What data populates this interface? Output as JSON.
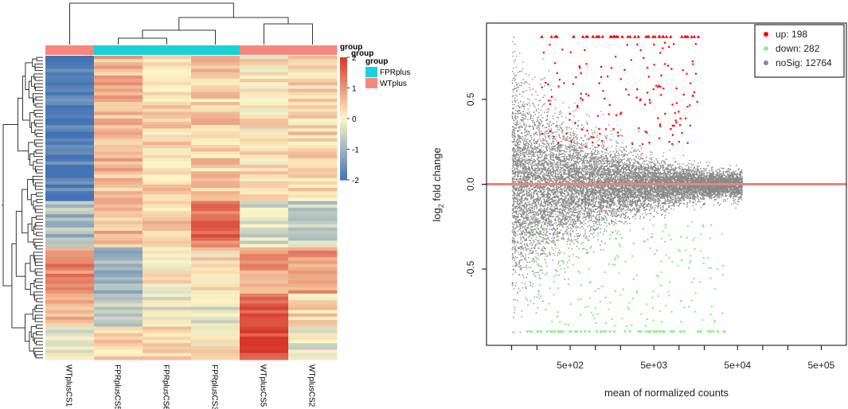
{
  "colors": {
    "fprplus": "#19d2d7",
    "wtplus": "#f7877d",
    "heat_low": "#4273b5",
    "heat_mid": "#fdf6c7",
    "heat_high": "#d7372a",
    "up": "#ff0000",
    "down": "#90ee90",
    "nosig": "#888888",
    "hline": "#f08080"
  },
  "chart_data": [
    {
      "type": "heatmap",
      "samples": [
        "WTplusCS1",
        "FPRplusCS5",
        "FPRplusCS6",
        "FPRplusCS3",
        "WTplusCS5",
        "WTplusCS2"
      ],
      "sample_groups": [
        "WTplus",
        "FPRplus",
        "FPRplus",
        "FPRplus",
        "WTplus",
        "WTplus"
      ],
      "annotation_title": "group",
      "legend_title": "group",
      "legend_entries": [
        "FPRplus",
        "WTplus"
      ],
      "colorbar_title": "group",
      "colorbar_ticks": [
        "2",
        "1",
        "0",
        "-1",
        "-2"
      ],
      "colorbar_values": [
        2,
        1,
        0,
        -1,
        -2
      ],
      "value_range": [
        -2,
        2
      ],
      "row_blocks": [
        {
          "rows": 44,
          "values": [
            -1.85,
            0.65,
            0.3,
            0.4,
            0.15,
            0.3
          ]
        },
        {
          "rows": 14,
          "values": [
            -0.9,
            0.6,
            0.45,
            1.4,
            -0.35,
            -0.6
          ]
        },
        {
          "rows": 14,
          "values": [
            1.1,
            -0.9,
            0.1,
            0.2,
            0.9,
            0.9
          ]
        },
        {
          "rows": 10,
          "values": [
            0.5,
            -0.5,
            -0.2,
            -0.3,
            1.5,
            0.3
          ]
        },
        {
          "rows": 10,
          "values": [
            -0.2,
            0.4,
            0.5,
            0.1,
            1.9,
            -0.2
          ]
        }
      ]
    },
    {
      "type": "scatter",
      "title": "",
      "xlabel": "mean of normalized counts",
      "ylabel": "log2 fold change",
      "ylabel_main": "log",
      "ylabel_sub": "2",
      "ylabel_rest": " fold change",
      "x_scale": "log10",
      "xlim": [
        50,
        1000000
      ],
      "ylim": [
        -0.95,
        0.95
      ],
      "x_ticks": [
        500,
        5000,
        50000,
        500000
      ],
      "x_tick_labels": [
        "5e+02",
        "5e+03",
        "5e+04",
        "5e+05"
      ],
      "y_ticks": [
        -0.5,
        0.0,
        0.5
      ],
      "y_tick_labels": [
        "-0.5",
        "0.0",
        "0.5"
      ],
      "hline": 0.0,
      "point_cap": 0.87,
      "legend_position": "top-right",
      "series": [
        {
          "name": "up",
          "count": 198,
          "label": "up: 198"
        },
        {
          "name": "down",
          "count": 282,
          "label": "down: 282"
        },
        {
          "name": "noSig",
          "count": 12764,
          "label": "noSig: 12764"
        }
      ]
    }
  ]
}
